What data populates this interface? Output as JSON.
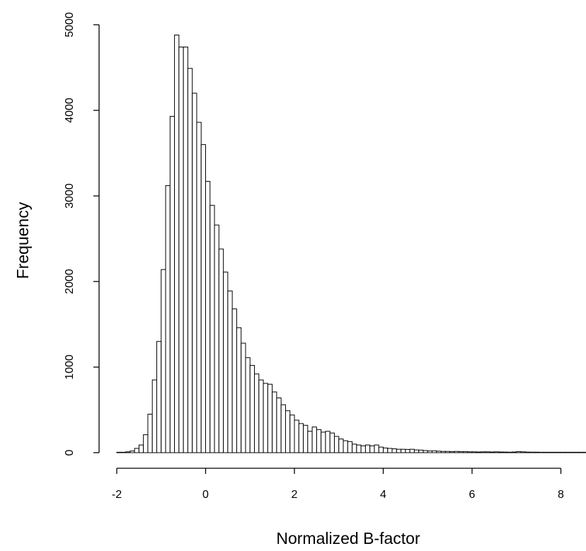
{
  "chart_data": {
    "type": "bar",
    "subtype": "histogram",
    "title": "",
    "xlabel": "Normalized B-factor",
    "ylabel": "Frequency",
    "xlim": [
      -2,
      8.6
    ],
    "ylim": [
      0,
      5000
    ],
    "x_ticks": [
      -2,
      0,
      2,
      4,
      6,
      8
    ],
    "x_tick_labels": [
      "-2",
      "0",
      "2",
      "4",
      "6",
      "8"
    ],
    "y_ticks": [
      0,
      1000,
      2000,
      3000,
      4000,
      5000
    ],
    "y_tick_labels": [
      "0",
      "1000",
      "2000",
      "3000",
      "4000",
      "5000"
    ],
    "grid": false,
    "legend": "none",
    "bar_fill": "#ffffff",
    "bar_stroke": "#000000",
    "bin_width": 0.1,
    "bin_start": -2,
    "values": [
      0,
      5,
      10,
      20,
      50,
      90,
      210,
      450,
      850,
      1300,
      2140,
      3120,
      3930,
      4880,
      4740,
      4740,
      4490,
      4200,
      3860,
      3600,
      3170,
      2890,
      2660,
      2380,
      2110,
      1890,
      1680,
      1460,
      1280,
      1110,
      1020,
      920,
      850,
      810,
      800,
      710,
      640,
      560,
      490,
      440,
      380,
      340,
      320,
      250,
      300,
      270,
      240,
      250,
      230,
      190,
      160,
      140,
      130,
      100,
      90,
      80,
      90,
      80,
      90,
      65,
      55,
      50,
      45,
      40,
      40,
      38,
      40,
      32,
      30,
      25,
      20,
      22,
      18,
      15,
      15,
      12,
      15,
      12,
      12,
      10,
      10,
      8,
      10,
      10,
      8,
      10,
      8,
      7,
      6,
      8,
      12,
      10,
      7,
      6,
      6,
      5,
      5,
      5,
      5,
      5,
      5,
      5,
      5,
      5,
      5,
      5
    ]
  }
}
